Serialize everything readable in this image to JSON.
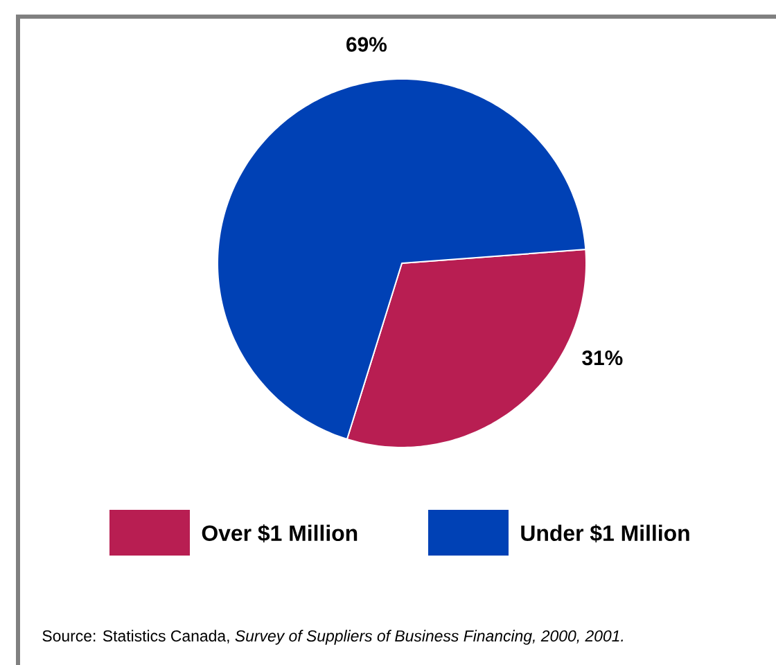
{
  "chart_data": {
    "type": "pie",
    "categories": [
      "Over $1 Million",
      "Under $1 Million"
    ],
    "values": [
      31,
      69
    ],
    "colors": [
      "#b81e52",
      "#0041b5"
    ],
    "value_labels": [
      "31%",
      "69%"
    ],
    "legend": "bottom",
    "annotations": [
      "Source: Statistics Canada, *Survey of Suppliers of Business Financing, 2000, 2001.*"
    ]
  }
}
